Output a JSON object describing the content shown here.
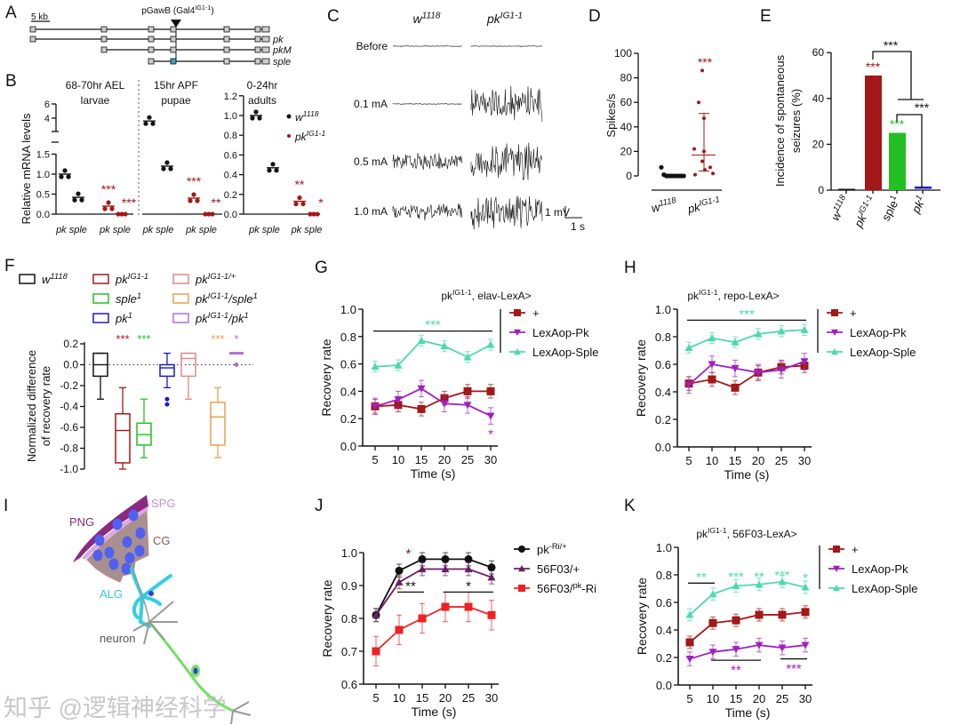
{
  "colors": {
    "black": "#111111",
    "darkred": "#a31818",
    "purple": "#a020c0",
    "teal": "#4dd9b0",
    "green": "#22c022",
    "blue": "#1a1ad0",
    "pink": "#e08888",
    "orange": "#e8a050",
    "lavender": "#b070d0",
    "red": "#ee2222",
    "plum": "#6a2060",
    "grey": "#888888"
  },
  "panels": {
    "A": "A",
    "B": "B",
    "C": "C",
    "D": "D",
    "E": "E",
    "F": "F",
    "G": "G",
    "H": "H",
    "I": "I",
    "J": "J",
    "K": "K"
  },
  "panelA": {
    "scale": "5 kb",
    "insertion": [
      "pGawB (Gal4",
      "IG1-1",
      ")"
    ],
    "isoforms": [
      "pk",
      "pkM",
      "sple"
    ]
  },
  "panelB": {
    "ylabel": "Relative mRNA levels",
    "stages": [
      {
        "line1": "68-70hr AEL",
        "line2": "larvae",
        "yticks": [
          "0.0",
          "0.5",
          "1.0",
          "1.5",
          "4",
          "6"
        ],
        "w1118": {
          "pk": 1.0,
          "sple": 0.42
        },
        "pkIG1": {
          "pk": 0.2,
          "sple": 0.0
        },
        "stars": {
          "pk": "***",
          "sple": "***"
        }
      },
      {
        "line1": "15hr APF",
        "line2": "pupae",
        "w1118": {
          "pk": 3.6,
          "sple": 1.2
        },
        "pkIG1": {
          "pk": 0.4,
          "sple": 0.0
        },
        "stars": {
          "pk": "***",
          "sple": "**"
        }
      },
      {
        "line1": "0-24hr",
        "line2": "adults",
        "yticks": [
          "0.0",
          "0.2",
          "0.4",
          "0.6",
          "0.8",
          "1.0",
          "1.2"
        ],
        "w1118": {
          "pk": 1.0,
          "sple": 0.47
        },
        "pkIG1": {
          "pk": 0.13,
          "sple": 0.0
        },
        "stars": {
          "pk": "**",
          "sple": "*"
        }
      }
    ],
    "xlabels": [
      "pk",
      "sple"
    ],
    "legend": [
      [
        "w",
        "1118"
      ],
      [
        "pk",
        "IG1-1"
      ]
    ]
  },
  "panelC": {
    "genotypes": [
      [
        "w",
        "1118"
      ],
      [
        "pk",
        "IG1-1"
      ]
    ],
    "conditions": [
      "Before",
      "0.1 mA",
      "0.5 mA",
      "1.0 mA"
    ],
    "activity": [
      [
        "none",
        "none"
      ],
      [
        "none",
        "high"
      ],
      [
        "medium",
        "high"
      ],
      [
        "medium",
        "high"
      ]
    ],
    "scale_v": "1 mV",
    "scale_t": "1 s"
  },
  "chart_data": [
    {
      "id": "D",
      "type": "scatter",
      "ylabel": "Spikes/s",
      "ylim": [
        0,
        100
      ],
      "yticks": [
        0,
        20,
        40,
        60,
        80,
        100
      ],
      "categories": [
        [
          "w",
          "1118"
        ],
        [
          "pk",
          "IG1-1"
        ]
      ],
      "series": [
        {
          "name": "w1118",
          "values": [
            7,
            1,
            0,
            0,
            0,
            0,
            0,
            0,
            0,
            0
          ]
        },
        {
          "name": "pkIG1-1",
          "values": [
            86,
            60,
            47,
            22,
            20,
            12,
            7,
            5,
            2,
            1
          ],
          "median": 17,
          "iqr": [
            4,
            51
          ]
        }
      ],
      "annotation": "***"
    },
    {
      "id": "E",
      "type": "bar",
      "ylabel": [
        "Incidence of spontaneous",
        "seizures (%)"
      ],
      "ylim": [
        0,
        60
      ],
      "yticks": [
        0,
        20,
        40,
        60
      ],
      "categories": [
        [
          "w",
          "1118"
        ],
        [
          "pk",
          "IG1-1"
        ],
        [
          "sple",
          "1"
        ],
        [
          "pk",
          "1"
        ]
      ],
      "values": [
        0,
        50,
        25,
        1
      ],
      "stars": [
        "",
        "***",
        "***",
        ""
      ],
      "comparisons": [
        "***",
        "***"
      ]
    },
    {
      "id": "F",
      "type": "box",
      "ylabel": [
        "Normalized difference",
        "of recovery rate"
      ],
      "ylim": [
        -1.0,
        0.2
      ],
      "yticks": [
        "0.2",
        "0.0",
        "-0.2",
        "-0.4",
        "-0.6",
        "-0.8",
        "-1.0"
      ],
      "groups": [
        {
          "label": [
            "w",
            "1118"
          ],
          "color": "black",
          "stats": [
            -0.33,
            -0.11,
            0,
            0.11,
            0.11
          ],
          "star": ""
        },
        {
          "label": [
            "pk",
            "IG1-1"
          ],
          "color": "darkred",
          "stats": [
            -1.0,
            -0.94,
            -0.63,
            -0.47,
            -0.22
          ],
          "star": "***"
        },
        {
          "label": [
            "sple",
            "1"
          ],
          "color": "green",
          "stats": [
            -0.89,
            -0.77,
            -0.67,
            -0.56,
            -0.33
          ],
          "star": "***"
        },
        {
          "label": [
            "pk",
            "1"
          ],
          "color": "blue",
          "stats": [
            -0.22,
            -0.11,
            -0.03,
            0,
            0.11
          ],
          "outliers": [
            -0.33,
            -0.38
          ],
          "star": ""
        },
        {
          "label": [
            "pk",
            "IG1-1/+"
          ],
          "color": "pink",
          "stats": [
            -0.33,
            -0.11,
            0.06,
            0.11,
            0.11
          ],
          "star": ""
        },
        {
          "label": [
            "pk",
            "IG1-1",
            "/sple",
            "1"
          ],
          "color": "orange",
          "stats": [
            -0.89,
            -0.77,
            -0.5,
            -0.36,
            -0.22
          ],
          "star": "***"
        },
        {
          "label": [
            "pk",
            "IG1-1",
            "/pk",
            "1"
          ],
          "color": "lavender",
          "stats": [
            0.11,
            0.11,
            0.11,
            0.11,
            0.11
          ],
          "outliers": [
            0
          ],
          "star": "*"
        }
      ]
    },
    {
      "id": "G",
      "type": "line",
      "title": [
        "pk",
        "IG1-1",
        ", elav-LexA>"
      ],
      "xlabel": "Time (s)",
      "ylabel": "Recovery rate",
      "x": [
        5,
        10,
        15,
        20,
        25,
        30
      ],
      "ylim": [
        0,
        1.0
      ],
      "yticks": [
        "0.0",
        "0.2",
        "0.4",
        "0.6",
        "0.8",
        "1.0"
      ],
      "series": [
        {
          "name": "+",
          "color": "darkred",
          "marker": "square",
          "values": [
            0.29,
            0.3,
            0.27,
            0.35,
            0.4,
            0.4
          ],
          "err": 0.05
        },
        {
          "name": "LexAop-Pk",
          "color": "purple",
          "marker": "tridown",
          "values": [
            0.29,
            0.34,
            0.42,
            0.31,
            0.3,
            0.22
          ],
          "err": 0.06
        },
        {
          "name": "LexAop-Sple",
          "color": "teal",
          "marker": "triup",
          "values": [
            0.58,
            0.59,
            0.77,
            0.73,
            0.65,
            0.74
          ],
          "err": 0.04
        }
      ],
      "annotations": [
        {
          "text": "***",
          "color": "teal",
          "x": [
            5,
            30
          ],
          "y": 0.84
        },
        {
          "text": "*",
          "color": "purple",
          "x": [
            30,
            30
          ],
          "y": 0.08,
          "nobar": true
        }
      ]
    },
    {
      "id": "H",
      "type": "line",
      "title": [
        "pk",
        "IG1-1",
        ", repo-LexA>"
      ],
      "xlabel": "Time (s)",
      "ylabel": "Recovery rate",
      "x": [
        5,
        10,
        15,
        20,
        25,
        30
      ],
      "ylim": [
        0,
        1.0
      ],
      "yticks": [
        "0.0",
        "0.2",
        "0.4",
        "0.6",
        "0.8",
        "1.0"
      ],
      "series": [
        {
          "name": "+",
          "color": "darkred",
          "marker": "square",
          "values": [
            0.46,
            0.49,
            0.43,
            0.54,
            0.58,
            0.59
          ],
          "err": 0.05
        },
        {
          "name": "LexAop-Pk",
          "color": "purple",
          "marker": "tridown",
          "values": [
            0.45,
            0.6,
            0.57,
            0.54,
            0.56,
            0.62
          ],
          "err": 0.06
        },
        {
          "name": "LexAop-Sple",
          "color": "teal",
          "marker": "triup",
          "values": [
            0.72,
            0.79,
            0.76,
            0.82,
            0.84,
            0.85
          ],
          "err": 0.04
        }
      ],
      "annotations": [
        {
          "text": "***",
          "color": "teal",
          "x": [
            5,
            30
          ],
          "y": 0.92
        }
      ]
    },
    {
      "id": "J",
      "type": "line",
      "title": null,
      "xlabel": "Time (s)",
      "ylabel": "Recovery rate",
      "x": [
        5,
        10,
        15,
        20,
        25,
        30
      ],
      "ylim": [
        0.6,
        1.0
      ],
      "yticks": [
        "0.6",
        "0.7",
        "0.8",
        "0.9",
        "1.0"
      ],
      "series": [
        {
          "name": [
            "pk",
            "-Ri/+"
          ],
          "color": "black",
          "marker": "circle",
          "values": [
            0.81,
            0.945,
            0.98,
            0.98,
            0.98,
            0.955
          ],
          "err": 0.02
        },
        {
          "name": "56F03/+",
          "color": "plum",
          "marker": "triup",
          "values": [
            0.81,
            0.91,
            0.95,
            0.95,
            0.95,
            0.925
          ],
          "err": 0.02
        },
        {
          "name": [
            "56F03/",
            "pk",
            "-Ri"
          ],
          "color": "red",
          "marker": "square",
          "values": [
            0.7,
            0.765,
            0.8,
            0.835,
            0.835,
            0.81
          ],
          "err": 0.045
        }
      ],
      "annotations": [
        {
          "text": "*",
          "color": "plum",
          "x": [
            12,
            12
          ],
          "y": 0.905,
          "nobar": true
        },
        {
          "text": "**",
          "color": "black",
          "x": [
            10,
            15
          ],
          "y": 0.88
        },
        {
          "text": "*",
          "color": "black",
          "x": [
            20,
            30
          ],
          "y": 0.88
        }
      ]
    },
    {
      "id": "K",
      "type": "line",
      "title": [
        "pk",
        "IG1-1",
        ", 56F03-LexA>"
      ],
      "xlabel": "Time (s)",
      "ylabel": "Recovery rate",
      "x": [
        5,
        10,
        15,
        20,
        25,
        30
      ],
      "ylim": [
        0,
        1.0
      ],
      "yticks": [
        "0.0",
        "0.2",
        "0.4",
        "0.6",
        "0.8",
        "1.0"
      ],
      "series": [
        {
          "name": "+",
          "color": "darkred",
          "marker": "square",
          "values": [
            0.31,
            0.45,
            0.47,
            0.51,
            0.51,
            0.53
          ],
          "err": 0.045
        },
        {
          "name": "LexAop-Pk",
          "color": "purple",
          "marker": "tridown",
          "values": [
            0.19,
            0.24,
            0.26,
            0.29,
            0.27,
            0.29
          ],
          "err": 0.05
        },
        {
          "name": "LexAop-Sple",
          "color": "teal",
          "marker": "triup",
          "values": [
            0.51,
            0.66,
            0.72,
            0.73,
            0.75,
            0.71
          ],
          "err": 0.045
        }
      ],
      "annotations": [
        {
          "text": "**",
          "color": "teal",
          "x": [
            5,
            10
          ],
          "y": 0.74
        },
        {
          "text": "***",
          "color": "teal",
          "x": [
            15,
            15
          ],
          "y": 0.78,
          "nobar": true
        },
        {
          "text": "**",
          "color": "teal",
          "x": [
            20,
            20
          ],
          "y": 0.78,
          "nobar": true
        },
        {
          "text": "***",
          "color": "teal",
          "x": [
            25,
            25
          ],
          "y": 0.79,
          "nobar": true
        },
        {
          "text": "*",
          "color": "teal",
          "x": [
            30,
            30
          ],
          "y": 0.77,
          "nobar": true
        },
        {
          "text": "**",
          "color": "purple",
          "x": [
            10,
            20
          ],
          "y": 0.18,
          "below": true
        },
        {
          "text": "***",
          "color": "purple",
          "x": [
            25,
            30
          ],
          "y": 0.19,
          "below": true
        }
      ]
    }
  ],
  "panelI": {
    "labels": [
      "PNG",
      "SPG",
      "CG",
      "ALG",
      "neuron"
    ]
  },
  "watermark": "知乎 @逻辑神经科学"
}
